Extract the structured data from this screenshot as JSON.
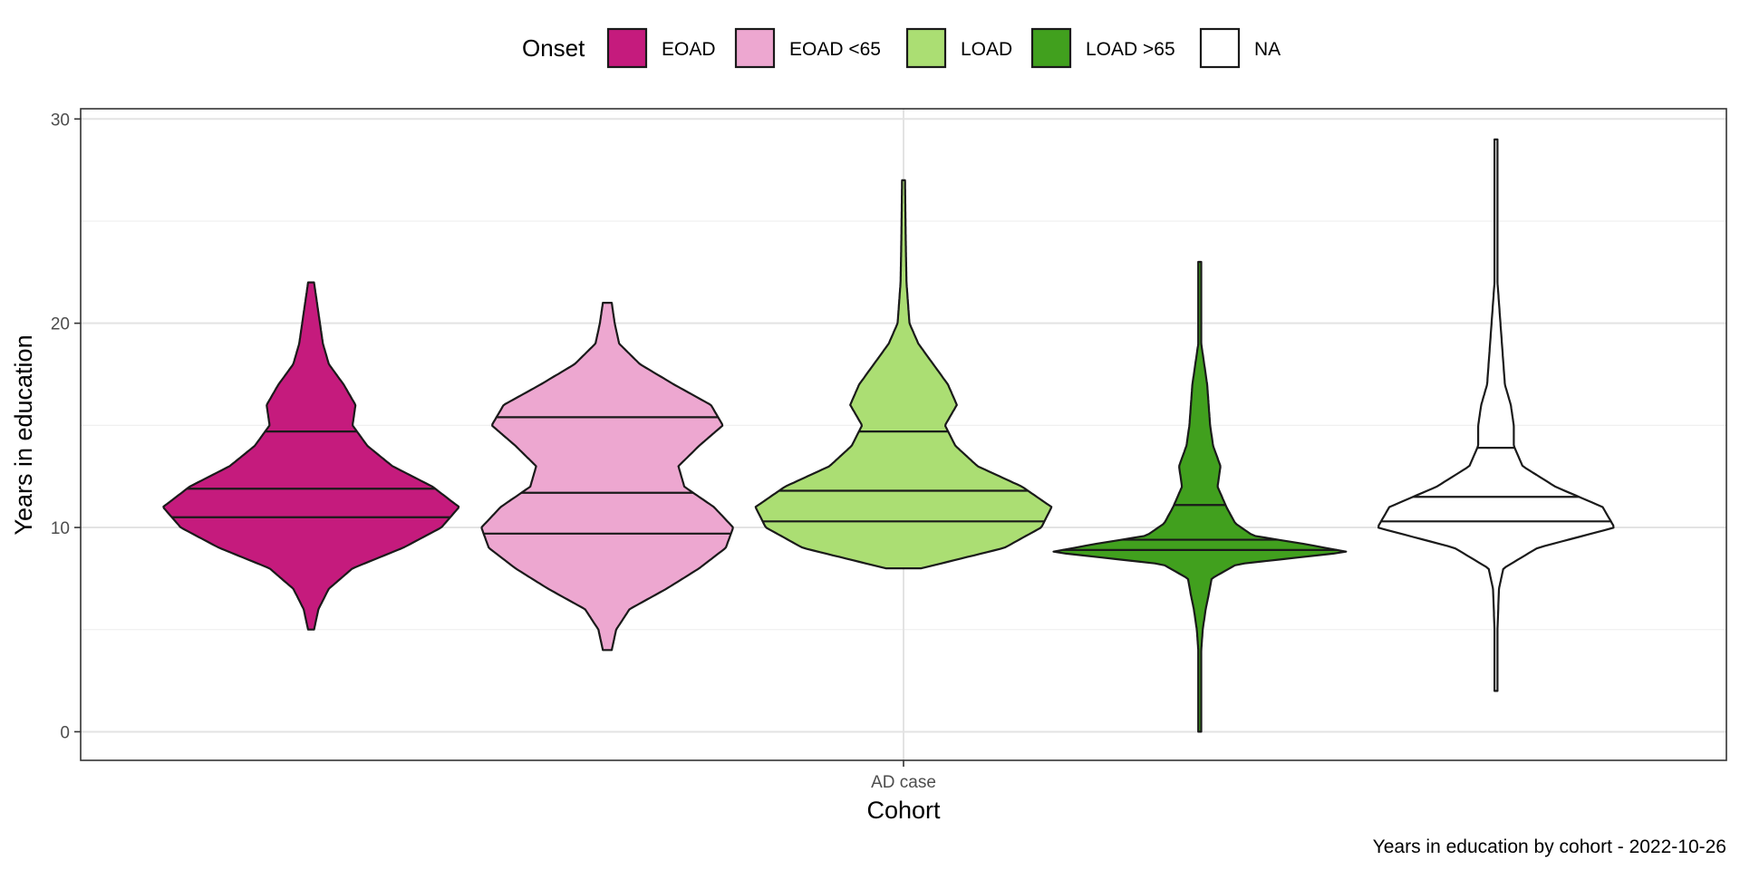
{
  "chart_data": {
    "type": "violin",
    "xlabel": "Cohort",
    "ylabel": "Years in education",
    "caption": "Years in education by cohort - 2022-10-26",
    "categories": [
      "AD case"
    ],
    "ylim": [
      -1.4,
      30.5
    ],
    "yticks": [
      0,
      10,
      20,
      30
    ],
    "grid": true,
    "legend": {
      "title": "Onset",
      "position": "top",
      "items": [
        {
          "label": "EOAD",
          "color": "#C51B7D"
        },
        {
          "label": "EOAD <65",
          "color": "#EDA7D0"
        },
        {
          "label": "LOAD",
          "color": "#ABDE73"
        },
        {
          "label": "LOAD >65",
          "color": "#41A01E"
        },
        {
          "label": "NA",
          "color": "#FFFFFF"
        }
      ]
    },
    "series": [
      {
        "name": "EOAD",
        "color": "#C51B7D",
        "min": 5,
        "max": 22,
        "quantiles": [
          10.5,
          11.9,
          14.7
        ],
        "density": [
          [
            5,
            0.02
          ],
          [
            6,
            0.05
          ],
          [
            7,
            0.12
          ],
          [
            8,
            0.28
          ],
          [
            9,
            0.62
          ],
          [
            10,
            0.88
          ],
          [
            11,
            1.0
          ],
          [
            12,
            0.82
          ],
          [
            13,
            0.55
          ],
          [
            14,
            0.38
          ],
          [
            15,
            0.28
          ],
          [
            16,
            0.3
          ],
          [
            17,
            0.22
          ],
          [
            18,
            0.12
          ],
          [
            19,
            0.08
          ],
          [
            20,
            0.06
          ],
          [
            21,
            0.04
          ],
          [
            22,
            0.02
          ]
        ]
      },
      {
        "name": "EOAD <65",
        "color": "#EDA7D0",
        "min": 4,
        "max": 21,
        "quantiles": [
          9.7,
          11.7,
          15.4
        ],
        "density": [
          [
            4,
            0.03
          ],
          [
            5,
            0.06
          ],
          [
            6,
            0.15
          ],
          [
            7,
            0.4
          ],
          [
            8,
            0.62
          ],
          [
            9,
            0.8
          ],
          [
            10,
            0.85
          ],
          [
            11,
            0.72
          ],
          [
            12,
            0.52
          ],
          [
            13,
            0.48
          ],
          [
            14,
            0.62
          ],
          [
            15,
            0.78
          ],
          [
            16,
            0.7
          ],
          [
            17,
            0.45
          ],
          [
            18,
            0.22
          ],
          [
            19,
            0.08
          ],
          [
            20,
            0.05
          ],
          [
            21,
            0.03
          ]
        ]
      },
      {
        "name": "LOAD",
        "color": "#ABDE73",
        "min": 8,
        "max": 27,
        "quantiles": [
          10.3,
          11.8,
          14.7
        ],
        "density": [
          [
            8,
            0.12
          ],
          [
            8.5,
            0.4
          ],
          [
            9,
            0.68
          ],
          [
            10,
            0.93
          ],
          [
            11,
            1.0
          ],
          [
            12,
            0.8
          ],
          [
            13,
            0.5
          ],
          [
            14,
            0.35
          ],
          [
            15,
            0.28
          ],
          [
            16,
            0.36
          ],
          [
            17,
            0.3
          ],
          [
            18,
            0.2
          ],
          [
            19,
            0.1
          ],
          [
            20,
            0.04
          ],
          [
            22,
            0.02
          ],
          [
            24,
            0.015
          ],
          [
            27,
            0.01
          ]
        ]
      },
      {
        "name": "LOAD >65",
        "color": "#41A01E",
        "min": 0,
        "max": 23,
        "quantiles": [
          8.9,
          9.4,
          11.1
        ],
        "density": [
          [
            0,
            0.01
          ],
          [
            2,
            0.01
          ],
          [
            4,
            0.01
          ],
          [
            5,
            0.02
          ],
          [
            6,
            0.04
          ],
          [
            6.7,
            0.06
          ],
          [
            7.5,
            0.08
          ],
          [
            8.2,
            0.25
          ],
          [
            8.8,
            1.0
          ],
          [
            9.2,
            0.7
          ],
          [
            9.6,
            0.36
          ],
          [
            10.2,
            0.24
          ],
          [
            11,
            0.18
          ],
          [
            12,
            0.12
          ],
          [
            13,
            0.14
          ],
          [
            14,
            0.09
          ],
          [
            15,
            0.07
          ],
          [
            16,
            0.06
          ],
          [
            17,
            0.05
          ],
          [
            18,
            0.03
          ],
          [
            19,
            0.01
          ],
          [
            20,
            0.01
          ],
          [
            23,
            0.01
          ]
        ]
      },
      {
        "name": "NA",
        "color": "#FFFFFF",
        "min": 2,
        "max": 29,
        "quantiles": [
          10.3,
          11.5,
          13.9
        ],
        "density": [
          [
            2,
            0.01
          ],
          [
            5,
            0.01
          ],
          [
            7,
            0.02
          ],
          [
            8,
            0.05
          ],
          [
            9,
            0.28
          ],
          [
            10,
            0.8
          ],
          [
            11,
            0.72
          ],
          [
            12,
            0.4
          ],
          [
            13,
            0.18
          ],
          [
            14,
            0.12
          ],
          [
            15,
            0.12
          ],
          [
            16,
            0.1
          ],
          [
            17,
            0.06
          ],
          [
            18,
            0.05
          ],
          [
            19,
            0.04
          ],
          [
            20,
            0.03
          ],
          [
            22,
            0.01
          ],
          [
            25,
            0.01
          ],
          [
            29,
            0.01
          ]
        ]
      }
    ]
  }
}
